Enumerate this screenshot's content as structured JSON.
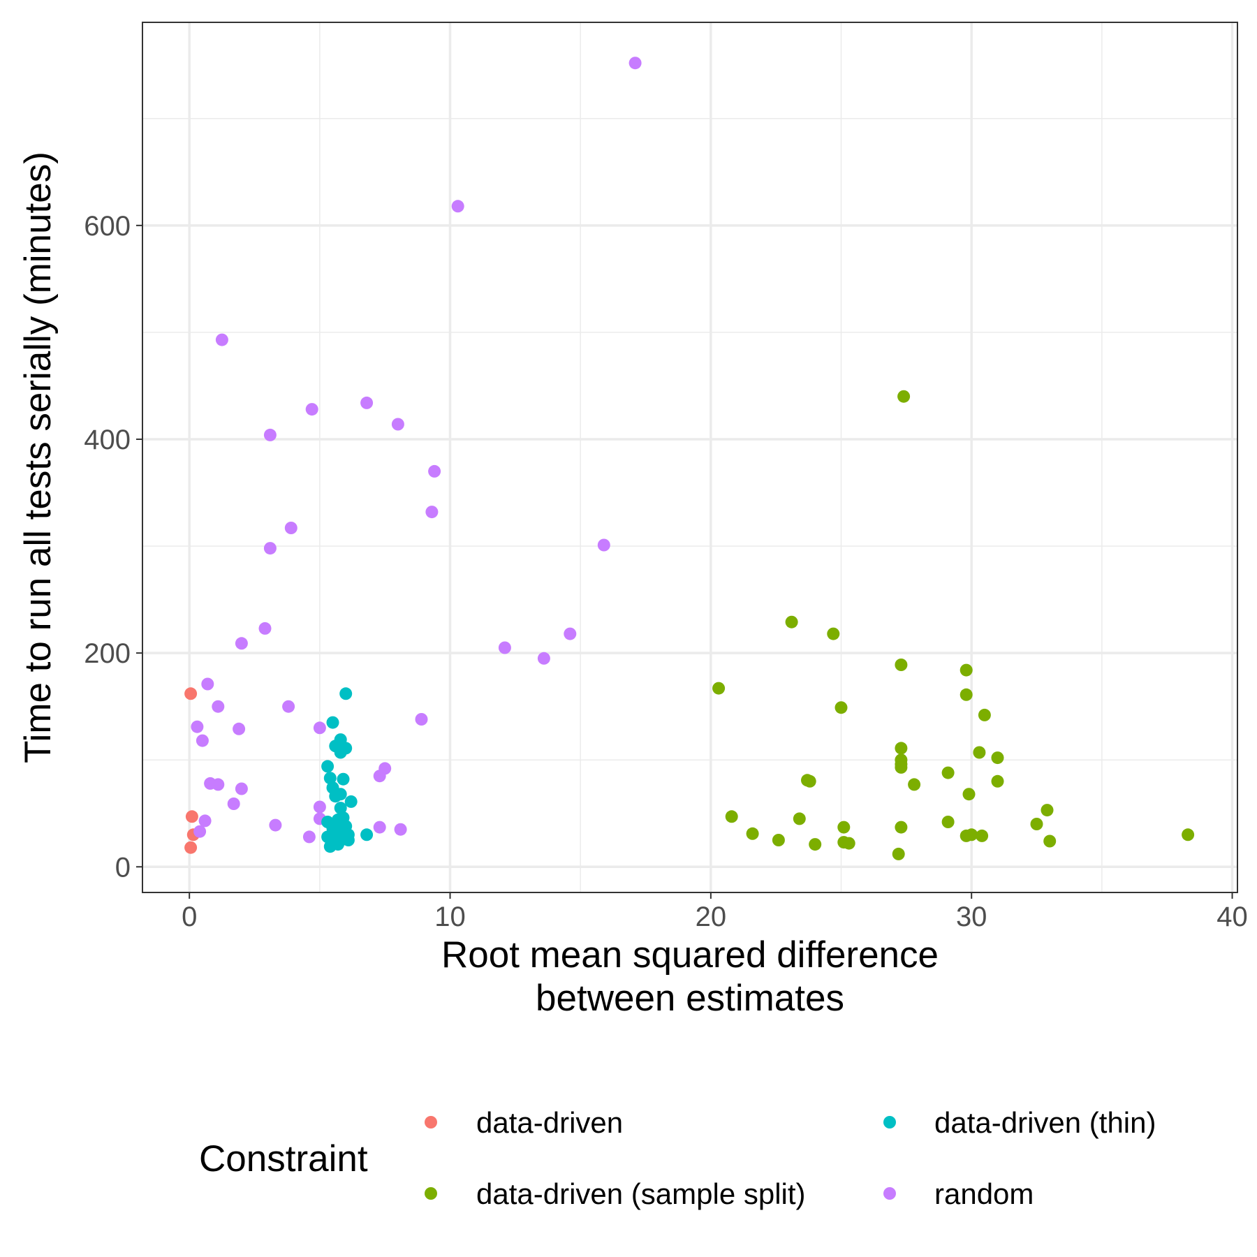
{
  "chart_data": {
    "type": "scatter",
    "xlabel": [
      "Root mean squared difference",
      "between estimates"
    ],
    "ylabel": "Time to run all tests serially (minutes)",
    "xlim": [
      -1.8,
      40.2
    ],
    "ylim": [
      -24,
      790
    ],
    "x_ticks": [
      0,
      10,
      20,
      30,
      40
    ],
    "y_ticks": [
      0,
      200,
      400,
      600
    ],
    "x_minor": [
      5,
      15,
      25,
      35
    ],
    "y_minor": [
      100,
      300,
      500,
      700
    ],
    "grid": true,
    "legend": {
      "title": "Constraint",
      "position": "bottom",
      "entries": [
        {
          "label": "data-driven",
          "color": "#F8766D"
        },
        {
          "label": "data-driven (thin)",
          "color": "#00BFC4"
        },
        {
          "label": "data-driven (sample split)",
          "color": "#7CAE00"
        },
        {
          "label": "random",
          "color": "#C77CFF"
        }
      ]
    },
    "series": [
      {
        "name": "data-driven",
        "color": "#F8766D",
        "points": [
          [
            0.05,
            162
          ],
          [
            0.1,
            47
          ],
          [
            0.15,
            30
          ],
          [
            0.05,
            18
          ]
        ]
      },
      {
        "name": "random",
        "color": "#C77CFF",
        "points": [
          [
            17.1,
            752
          ],
          [
            10.3,
            618
          ],
          [
            1.25,
            493
          ],
          [
            6.8,
            434
          ],
          [
            4.7,
            428
          ],
          [
            8.0,
            414
          ],
          [
            3.1,
            404
          ],
          [
            9.4,
            370
          ],
          [
            9.3,
            332
          ],
          [
            3.9,
            317
          ],
          [
            3.1,
            298
          ],
          [
            15.9,
            301
          ],
          [
            2.9,
            223
          ],
          [
            14.6,
            218
          ],
          [
            2.0,
            209
          ],
          [
            12.1,
            205
          ],
          [
            13.6,
            195
          ],
          [
            0.7,
            171
          ],
          [
            1.1,
            150
          ],
          [
            3.8,
            150
          ],
          [
            8.9,
            138
          ],
          [
            0.3,
            131
          ],
          [
            1.9,
            129
          ],
          [
            5.0,
            130
          ],
          [
            0.5,
            118
          ],
          [
            7.5,
            92
          ],
          [
            7.3,
            85
          ],
          [
            0.8,
            78
          ],
          [
            1.1,
            77
          ],
          [
            2.0,
            73
          ],
          [
            1.7,
            59
          ],
          [
            5.0,
            56
          ],
          [
            5.0,
            45
          ],
          [
            0.6,
            43
          ],
          [
            3.3,
            39
          ],
          [
            7.3,
            37
          ],
          [
            8.1,
            35
          ],
          [
            0.4,
            33
          ],
          [
            4.6,
            28
          ]
        ]
      },
      {
        "name": "data-driven (thin)",
        "color": "#00BFC4",
        "points": [
          [
            6.0,
            162
          ],
          [
            5.5,
            135
          ],
          [
            5.8,
            119
          ],
          [
            5.6,
            113
          ],
          [
            6.0,
            111
          ],
          [
            5.8,
            107
          ],
          [
            5.3,
            94
          ],
          [
            5.4,
            83
          ],
          [
            5.9,
            82
          ],
          [
            5.5,
            74
          ],
          [
            5.8,
            68
          ],
          [
            5.6,
            66
          ],
          [
            6.2,
            61
          ],
          [
            5.8,
            55
          ],
          [
            5.9,
            46
          ],
          [
            5.7,
            44
          ],
          [
            5.3,
            42
          ],
          [
            5.6,
            40
          ],
          [
            6.0,
            38
          ],
          [
            5.5,
            36
          ],
          [
            5.8,
            34
          ],
          [
            6.1,
            30
          ],
          [
            6.8,
            30
          ],
          [
            5.3,
            28
          ],
          [
            5.6,
            27
          ],
          [
            5.9,
            26
          ],
          [
            6.1,
            25
          ],
          [
            5.5,
            24
          ],
          [
            5.7,
            21
          ],
          [
            5.4,
            19
          ]
        ]
      },
      {
        "name": "data-driven (sample split)",
        "color": "#7CAE00",
        "points": [
          [
            27.4,
            440
          ],
          [
            23.1,
            229
          ],
          [
            24.7,
            218
          ],
          [
            27.3,
            189
          ],
          [
            29.8,
            184
          ],
          [
            20.3,
            167
          ],
          [
            29.8,
            161
          ],
          [
            25.0,
            149
          ],
          [
            30.5,
            142
          ],
          [
            27.3,
            111
          ],
          [
            30.3,
            107
          ],
          [
            31.0,
            102
          ],
          [
            27.3,
            100
          ],
          [
            27.3,
            96
          ],
          [
            27.3,
            93
          ],
          [
            29.1,
            88
          ],
          [
            23.7,
            81
          ],
          [
            23.8,
            80
          ],
          [
            31.0,
            80
          ],
          [
            27.8,
            77
          ],
          [
            29.9,
            68
          ],
          [
            32.9,
            53
          ],
          [
            20.8,
            47
          ],
          [
            23.4,
            45
          ],
          [
            29.1,
            42
          ],
          [
            32.5,
            40
          ],
          [
            25.1,
            37
          ],
          [
            27.3,
            37
          ],
          [
            21.6,
            31
          ],
          [
            38.3,
            30
          ],
          [
            29.8,
            29
          ],
          [
            30.0,
            30
          ],
          [
            30.4,
            29
          ],
          [
            22.6,
            25
          ],
          [
            33.0,
            24
          ],
          [
            25.1,
            23
          ],
          [
            25.3,
            22
          ],
          [
            24.0,
            21
          ],
          [
            27.2,
            12
          ]
        ]
      }
    ]
  }
}
